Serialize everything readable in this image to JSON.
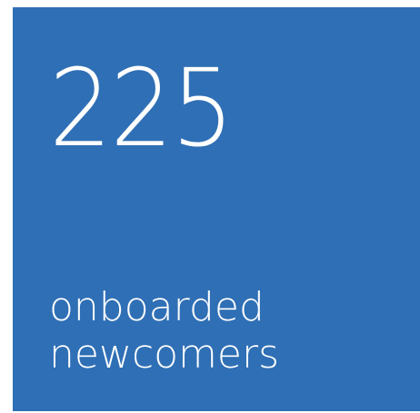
{
  "stat": {
    "value": "225",
    "label_lines": [
      "onboarded",
      "newcomers"
    ]
  }
}
